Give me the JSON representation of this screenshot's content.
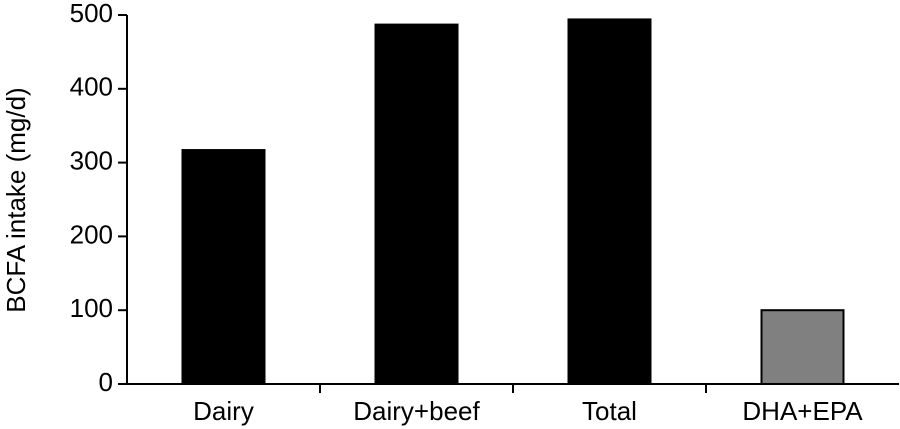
{
  "chart_data": {
    "type": "bar",
    "y_label": "BCFA intake (mg/d)",
    "categories": [
      "Dairy",
      "Dairy+beef",
      "Total",
      "DHA+EPA"
    ],
    "values": [
      317,
      487,
      494,
      100
    ],
    "colors": [
      "#000000",
      "#000000",
      "#000000",
      "#808080"
    ],
    "ylim": [
      0,
      500
    ],
    "yticks": [
      0,
      100,
      200,
      300,
      400,
      500
    ],
    "grid": false
  }
}
